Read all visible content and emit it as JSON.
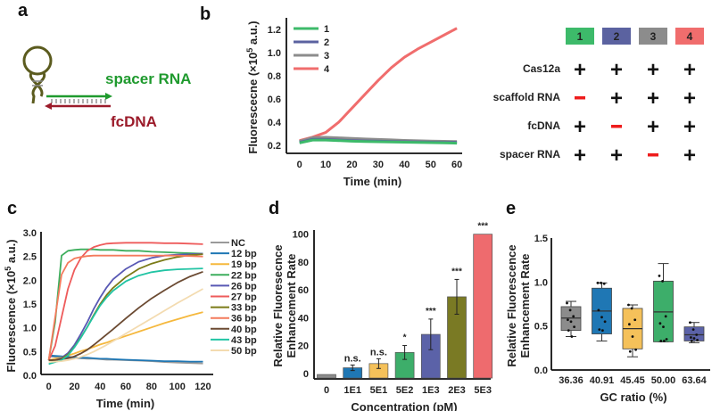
{
  "panels": {
    "a": {
      "label": "a",
      "spacer_label": "spacer RNA",
      "fcdna_label": "fcDNA",
      "colors": {
        "hairpin": "#5b5b1e",
        "spacer": "#1f9a2e",
        "fcdna": "#9b1b2a",
        "rungs": "#777777"
      }
    },
    "b_table": {
      "columns": [
        {
          "label": "1",
          "color": "#3dba6a"
        },
        {
          "label": "2",
          "color": "#5b62a0"
        },
        {
          "label": "3",
          "color": "#8c8c8c"
        },
        {
          "label": "4",
          "color": "#f06d6d"
        }
      ],
      "rows": [
        {
          "label": "Cas12a",
          "values": [
            "+",
            "+",
            "+",
            "+"
          ]
        },
        {
          "label": "scaffold RNA",
          "values": [
            "-",
            "+",
            "+",
            "+"
          ]
        },
        {
          "label": "fcDNA",
          "values": [
            "+",
            "-",
            "+",
            "+"
          ]
        },
        {
          "label": "spacer RNA",
          "values": [
            "+",
            "+",
            "-",
            "+"
          ]
        }
      ],
      "minus_color": "#ee1c1c"
    }
  },
  "chart_data": [
    {
      "id": "b",
      "panel_label": "b",
      "type": "line",
      "title": "",
      "xlabel": "Time (min)",
      "ylabel_main": "Fluorescecne (×10",
      "ylabel_sup": "5",
      "ylabel_tail": " a.u.)",
      "xlim": [
        -5,
        62
      ],
      "ylim": [
        0.13,
        1.3
      ],
      "xticks": [
        0,
        10,
        20,
        30,
        40,
        50,
        60
      ],
      "yticks": [
        0.2,
        0.4,
        0.6,
        0.8,
        1.0,
        1.2
      ],
      "ytick_labels": [
        "0.2",
        "0.4",
        "0.6",
        "0.8",
        "1.0",
        "1.2"
      ],
      "legend_position": "top-left",
      "x": [
        0,
        5,
        10,
        15,
        20,
        25,
        30,
        35,
        40,
        45,
        50,
        55,
        60
      ],
      "series": [
        {
          "name": "1",
          "color": "#3dba6a",
          "values": [
            0.22,
            0.245,
            0.245,
            0.24,
            0.235,
            0.232,
            0.23,
            0.228,
            0.226,
            0.224,
            0.222,
            0.22,
            0.218
          ]
        },
        {
          "name": "2",
          "color": "#5b62a0",
          "values": [
            0.225,
            0.25,
            0.25,
            0.245,
            0.24,
            0.237,
            0.235,
            0.232,
            0.23,
            0.228,
            0.226,
            0.225,
            0.224
          ]
        },
        {
          "name": "3",
          "color": "#8c8c8c",
          "values": [
            0.23,
            0.262,
            0.265,
            0.26,
            0.255,
            0.25,
            0.246,
            0.242,
            0.238,
            0.235,
            0.232,
            0.23,
            0.228
          ]
        },
        {
          "name": "4",
          "color": "#f06d6d",
          "values": [
            0.24,
            0.27,
            0.31,
            0.4,
            0.52,
            0.64,
            0.76,
            0.87,
            0.96,
            1.03,
            1.09,
            1.15,
            1.21
          ]
        }
      ]
    },
    {
      "id": "c",
      "panel_label": "c",
      "type": "line",
      "title": "",
      "xlabel": "Time (min)",
      "ylabel_main": "Fluorescence (×10",
      "ylabel_sup": "5",
      "ylabel_tail": " a.u.)",
      "xlim": [
        -6,
        128
      ],
      "ylim": [
        0,
        3.0
      ],
      "xticks": [
        0,
        20,
        40,
        60,
        80,
        100,
        120
      ],
      "yticks": [
        0,
        0.5,
        1.0,
        1.5,
        2.0,
        2.5,
        3.0
      ],
      "ytick_labels": [
        "0.0",
        "0.5",
        "1.0",
        "1.5",
        "2.0",
        "2.5",
        "3.0"
      ],
      "legend_position": "right",
      "x": [
        0,
        5,
        10,
        15,
        20,
        25,
        30,
        35,
        40,
        45,
        50,
        60,
        70,
        80,
        90,
        100,
        110,
        120
      ],
      "series": [
        {
          "name": "NC",
          "color": "#9a9a9a",
          "values": [
            0.38,
            0.37,
            0.36,
            0.35,
            0.34,
            0.34,
            0.33,
            0.33,
            0.32,
            0.31,
            0.31,
            0.3,
            0.29,
            0.28,
            0.26,
            0.25,
            0.24,
            0.23
          ]
        },
        {
          "name": "12 bp",
          "color": "#1f77b4",
          "values": [
            0.4,
            0.39,
            0.38,
            0.37,
            0.36,
            0.35,
            0.35,
            0.34,
            0.33,
            0.33,
            0.32,
            0.31,
            0.3,
            0.29,
            0.28,
            0.28,
            0.27,
            0.27
          ]
        },
        {
          "name": "19 bp",
          "color": "#f5b83d",
          "values": [
            0.3,
            0.33,
            0.36,
            0.4,
            0.44,
            0.49,
            0.53,
            0.58,
            0.63,
            0.67,
            0.72,
            0.81,
            0.9,
            0.99,
            1.08,
            1.16,
            1.24,
            1.31
          ]
        },
        {
          "name": "22 bp",
          "color": "#3dae5d",
          "values": [
            0.3,
            1.1,
            2.5,
            2.6,
            2.62,
            2.63,
            2.63,
            2.63,
            2.62,
            2.62,
            2.62,
            2.6,
            2.6,
            2.58,
            2.57,
            2.56,
            2.55,
            2.54
          ]
        },
        {
          "name": "26 bp",
          "color": "#5858b4",
          "values": [
            0.3,
            0.3,
            0.35,
            0.45,
            0.62,
            0.85,
            1.1,
            1.38,
            1.62,
            1.83,
            2.0,
            2.22,
            2.37,
            2.45,
            2.5,
            2.52,
            2.53,
            2.54
          ]
        },
        {
          "name": "27 bp",
          "color": "#ee5b5b",
          "values": [
            0.3,
            0.6,
            1.2,
            1.8,
            2.2,
            2.45,
            2.6,
            2.68,
            2.72,
            2.75,
            2.76,
            2.77,
            2.77,
            2.77,
            2.76,
            2.76,
            2.75,
            2.74
          ]
        },
        {
          "name": "33 bp",
          "color": "#7b7b18",
          "values": [
            0.3,
            0.3,
            0.33,
            0.42,
            0.58,
            0.78,
            1.0,
            1.25,
            1.48,
            1.67,
            1.82,
            2.05,
            2.22,
            2.33,
            2.41,
            2.47,
            2.51,
            2.53
          ]
        },
        {
          "name": "36 bp",
          "color": "#f47a5c",
          "values": [
            0.3,
            1.2,
            2.1,
            2.35,
            2.44,
            2.47,
            2.49,
            2.5,
            2.5,
            2.5,
            2.5,
            2.5,
            2.5,
            2.5,
            2.5,
            2.5,
            2.49,
            2.48
          ]
        },
        {
          "name": "40 bp",
          "color": "#6b4a32",
          "values": [
            0.3,
            0.3,
            0.32,
            0.34,
            0.38,
            0.44,
            0.52,
            0.62,
            0.73,
            0.84,
            0.95,
            1.18,
            1.4,
            1.6,
            1.77,
            1.93,
            2.06,
            2.16
          ]
        },
        {
          "name": "43 bp",
          "color": "#22c4a4",
          "values": [
            0.22,
            0.26,
            0.3,
            0.4,
            0.57,
            0.77,
            1.0,
            1.23,
            1.45,
            1.62,
            1.76,
            1.96,
            2.08,
            2.15,
            2.19,
            2.21,
            2.22,
            2.23
          ]
        },
        {
          "name": "50 bp",
          "color": "#f3dbb0",
          "values": [
            0.26,
            0.27,
            0.28,
            0.3,
            0.33,
            0.37,
            0.42,
            0.48,
            0.55,
            0.62,
            0.7,
            0.86,
            1.02,
            1.18,
            1.34,
            1.5,
            1.65,
            1.8
          ]
        }
      ]
    },
    {
      "id": "d",
      "panel_label": "d",
      "type": "bar",
      "title": "",
      "xlabel": "Concentration (pM)",
      "ylabel_line1": "Relative Fluoresecnce",
      "ylabel_line2": "Enhancement Rate",
      "ylim": [
        -4,
        103
      ],
      "yticks": [
        0,
        20,
        40,
        60,
        80,
        100
      ],
      "ytick_labels": [
        "0",
        "20",
        "40",
        "60",
        "80",
        "100"
      ],
      "categories": [
        "0",
        "1E1",
        "5E1",
        "5E2",
        "1E3",
        "2E3",
        "5E3"
      ],
      "values": [
        0,
        4,
        7,
        15,
        28,
        55,
        100
      ],
      "errors": [
        0,
        2,
        3.5,
        5,
        11,
        12.5,
        0
      ],
      "significance": [
        "",
        "n.s.",
        "n.s.",
        "*",
        "***",
        "***",
        "***"
      ],
      "colors": [
        "#8c8c8c",
        "#1f77b4",
        "#f5c15a",
        "#3dae6a",
        "#5b62a8",
        "#7a7a24",
        "#ee6b6e"
      ]
    },
    {
      "id": "e",
      "panel_label": "e",
      "type": "box",
      "title": "",
      "xlabel": "GC ratio (%)",
      "ylabel_line1": "Relative Fluorescence",
      "ylabel_line2": "Enhancement Rate",
      "ylim": [
        0,
        1.5
      ],
      "yticks": [
        0,
        0.5,
        1.0,
        1.5
      ],
      "ytick_labels": [
        "0.0",
        "0.5",
        "1.0",
        "1.5"
      ],
      "categories": [
        "36.36",
        "40.91",
        "45.45",
        "50.00",
        "63.64"
      ],
      "colors": [
        "#8c8c8c",
        "#1f77b4",
        "#f5c15a",
        "#3dae6a",
        "#5b62a8"
      ],
      "boxes": [
        {
          "min": 0.38,
          "q1": 0.45,
          "median": 0.59,
          "q3": 0.72,
          "max": 0.78,
          "points": [
            0.76,
            0.68,
            0.61,
            0.57,
            0.55,
            0.49,
            0.45,
            0.38
          ]
        },
        {
          "min": 0.33,
          "q1": 0.41,
          "median": 0.67,
          "q3": 0.93,
          "max": 0.99,
          "points": [
            0.99,
            0.99,
            0.98,
            0.68,
            0.6,
            0.55,
            0.46,
            0.45
          ]
        },
        {
          "min": 0.15,
          "q1": 0.24,
          "median": 0.47,
          "q3": 0.7,
          "max": 0.74,
          "points": [
            0.74,
            0.7,
            0.57,
            0.52,
            0.38,
            0.23,
            0.21
          ]
        },
        {
          "min": 0.32,
          "q1": 0.32,
          "median": 0.66,
          "q3": 1.01,
          "max": 1.21,
          "points": [
            1.07,
            1.01,
            0.61,
            0.53,
            0.49,
            0.35,
            0.33,
            0.33
          ]
        },
        {
          "min": 0.31,
          "q1": 0.33,
          "median": 0.4,
          "q3": 0.49,
          "max": 0.54,
          "points": [
            0.54,
            0.46,
            0.4,
            0.37,
            0.36,
            0.34,
            0.33
          ]
        }
      ]
    }
  ]
}
